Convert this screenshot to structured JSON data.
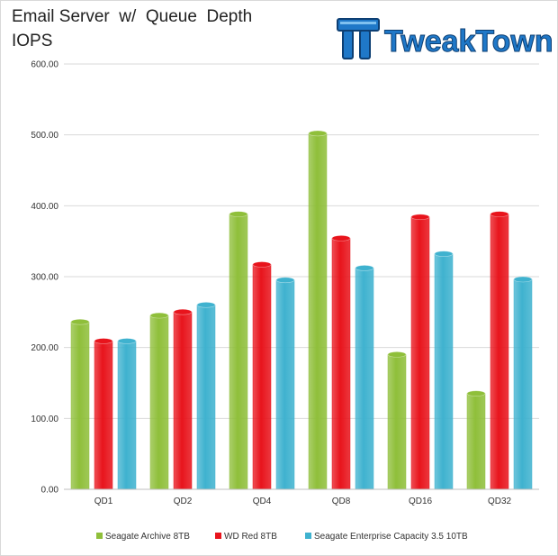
{
  "header": {
    "title": "Email Server  w/  Queue  Depth",
    "subtitle": "IOPS",
    "logo_text": "TweakTown"
  },
  "colors": {
    "series_1": "#8fbf3a",
    "series_2": "#e8141c",
    "series_3": "#3fb2cf",
    "grid": "#d9d9d9",
    "logo_blue": "#1f78c8"
  },
  "chart_data": {
    "type": "bar",
    "title": "Email Server  w/  Queue  Depth",
    "ylabel": "IOPS",
    "xlabel": "",
    "ylim": [
      0,
      600
    ],
    "yticks": [
      "0.00",
      "100.00",
      "200.00",
      "300.00",
      "400.00",
      "500.00",
      "600.00"
    ],
    "grid": true,
    "legend_position": "bottom",
    "categories": [
      "QD1",
      "QD2",
      "QD4",
      "QD8",
      "QD16",
      "QD32"
    ],
    "series": [
      {
        "name": "Seagate Archive 8TB",
        "values": [
          240,
          249,
          392,
          506,
          194,
          139
        ]
      },
      {
        "name": "WD Red 8TB",
        "values": [
          213,
          254,
          321,
          358,
          388,
          392
        ]
      },
      {
        "name": "Seagate Enterprise Capacity 3.5 10TB",
        "values": [
          213,
          264,
          299,
          316,
          336,
          300
        ]
      }
    ]
  }
}
